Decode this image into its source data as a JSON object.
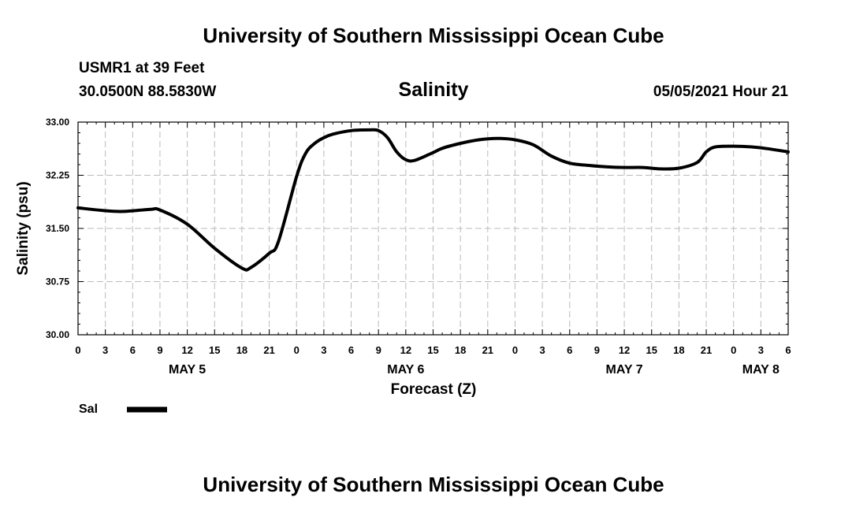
{
  "header": {
    "title": "University of Southern Mississippi Ocean Cube",
    "station": "USMR1 at 39 Feet",
    "coordinates": "30.0500N  88.5830W",
    "datetime": "05/05/2021 Hour 21"
  },
  "footer": {
    "title": "University of Southern Mississippi Ocean Cube"
  },
  "chart_data": {
    "type": "line",
    "title": "Salinity",
    "xlabel": "Forecast (Z)",
    "ylabel": "Salinity (psu)",
    "ylim": [
      30.0,
      33.0
    ],
    "xlim": [
      0,
      78
    ],
    "y_ticks": [
      "30.00",
      "30.75",
      "31.50",
      "32.25",
      "33.00"
    ],
    "x_tick_labels": [
      "0",
      "3",
      "6",
      "9",
      "12",
      "15",
      "18",
      "21",
      "0",
      "3",
      "6",
      "9",
      "12",
      "15",
      "18",
      "21",
      "0",
      "3",
      "6",
      "9",
      "12",
      "15",
      "18",
      "21",
      "0",
      "3",
      "6"
    ],
    "day_labels": [
      {
        "label": "MAY 5",
        "hour": 12
      },
      {
        "label": "MAY 6",
        "hour": 36
      },
      {
        "label": "MAY 7",
        "hour": 60
      },
      {
        "label": "MAY 8",
        "hour": 75
      }
    ],
    "grid": true,
    "legend": {
      "position": "bottom-left",
      "entries": [
        {
          "name": "Sal",
          "color": "#000000"
        }
      ]
    },
    "series": [
      {
        "name": "Sal",
        "color": "#000000",
        "x": [
          0,
          3,
          5,
          8,
          9,
          12,
          15,
          18,
          19,
          21,
          22,
          24,
          25,
          26,
          27,
          28,
          30,
          32,
          33,
          34,
          35,
          36,
          37,
          39,
          40,
          42,
          44,
          46,
          48,
          50,
          52,
          54,
          56,
          58,
          60,
          62,
          64,
          66,
          68,
          69,
          70,
          72,
          74,
          76,
          78
        ],
        "y": [
          31.79,
          31.75,
          31.74,
          31.77,
          31.76,
          31.56,
          31.22,
          30.94,
          30.95,
          31.15,
          31.31,
          32.23,
          32.56,
          32.7,
          32.78,
          32.83,
          32.88,
          32.89,
          32.88,
          32.78,
          32.58,
          32.47,
          32.46,
          32.57,
          32.63,
          32.7,
          32.75,
          32.77,
          32.75,
          32.68,
          32.52,
          32.42,
          32.39,
          32.37,
          32.36,
          32.36,
          32.34,
          32.35,
          32.43,
          32.58,
          32.65,
          32.66,
          32.65,
          32.62,
          32.58
        ]
      }
    ]
  }
}
